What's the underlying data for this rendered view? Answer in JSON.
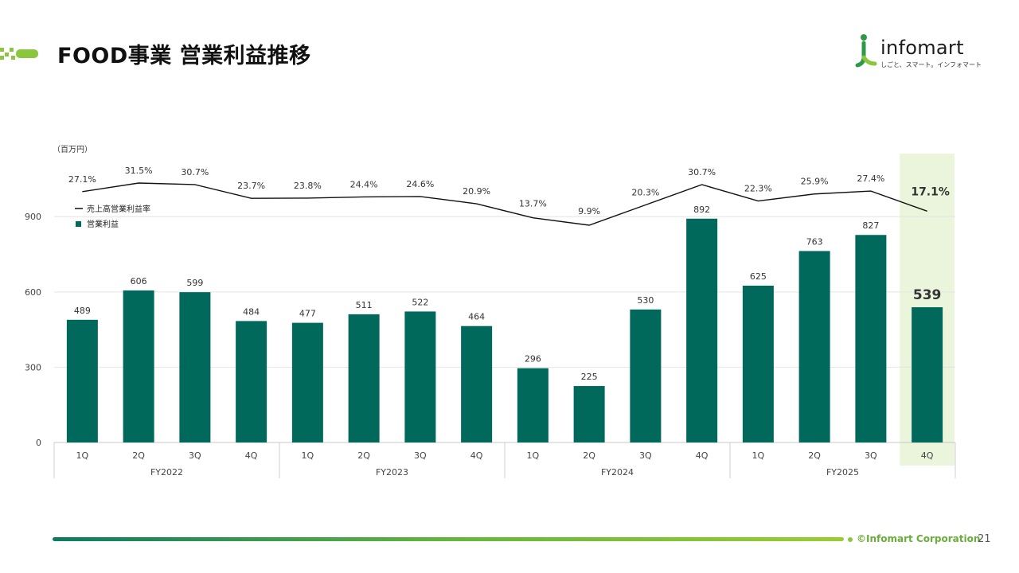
{
  "header": {
    "title": "FOOD事業 営業利益推移"
  },
  "logo": {
    "word": "infomart",
    "tagline": "しごと、スマート。インフォマート"
  },
  "footer": {
    "copyright": "©Infomart Corporation",
    "page_number": "21"
  },
  "colors": {
    "bar": "#00695c",
    "line": "#111111",
    "highlight": "#eaf5dc",
    "accent": "#8cc63f"
  },
  "chart_data": {
    "type": "bar",
    "unit_label": "（百万円）",
    "categories": [
      "1Q",
      "2Q",
      "3Q",
      "4Q",
      "1Q",
      "2Q",
      "3Q",
      "4Q",
      "1Q",
      "2Q",
      "3Q",
      "4Q",
      "1Q",
      "2Q",
      "3Q",
      "4Q"
    ],
    "groups": [
      {
        "label": "FY2022",
        "count": 4
      },
      {
        "label": "FY2023",
        "count": 4
      },
      {
        "label": "FY2024",
        "count": 4
      },
      {
        "label": "FY2025",
        "count": 4
      }
    ],
    "ylim": [
      0,
      1100
    ],
    "yticks": [
      0,
      300,
      600,
      900
    ],
    "highlight_index": 15,
    "series": [
      {
        "name": "営業利益",
        "type": "bar",
        "values": [
          489,
          606,
          599,
          484,
          477,
          511,
          522,
          464,
          296,
          225,
          530,
          892,
          625,
          763,
          827,
          539
        ]
      },
      {
        "name": "売上高営業利益率",
        "type": "line",
        "values": [
          27.1,
          31.5,
          30.7,
          23.7,
          23.8,
          24.4,
          24.6,
          20.9,
          13.7,
          9.9,
          20.3,
          30.7,
          22.3,
          25.9,
          27.4,
          17.1
        ],
        "labels": [
          "27.1%",
          "31.5%",
          "30.7%",
          "23.7%",
          "23.8%",
          "24.4%",
          "24.6%",
          "20.9%",
          "13.7%",
          "9.9%",
          "20.3%",
          "30.7%",
          "22.3%",
          "25.9%",
          "27.4%",
          "17.1%"
        ]
      }
    ]
  }
}
